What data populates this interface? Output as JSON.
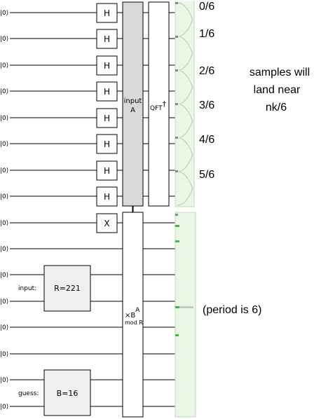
{
  "ket_label": "|0⟩",
  "h_gate_label": "H",
  "x_gate_label": "X",
  "input_a_block": {
    "line1": "input",
    "line2": "A",
    "fill": "#d9d9d9"
  },
  "qft_label": {
    "base": "QFT",
    "dagger": "†"
  },
  "register_r": {
    "prefix": "input:",
    "label": "R=221",
    "fill": "#efefef"
  },
  "register_b": {
    "prefix": "guess:",
    "label": "B=16",
    "fill": "#efefef"
  },
  "mul_gate": {
    "times": "×B",
    "superscript": "A",
    "subscript": "mod R"
  },
  "fractions": [
    "0/6",
    "1/6",
    "2/6",
    "3/6",
    "4/6",
    "5/6"
  ],
  "note_lines": [
    "samples will",
    "land near",
    "nk/6"
  ],
  "period_note": "(period is 6)",
  "display_colors": {
    "fill": "#e6f6e0",
    "curve": "#b4d7b0",
    "marker": "#45b64a"
  }
}
